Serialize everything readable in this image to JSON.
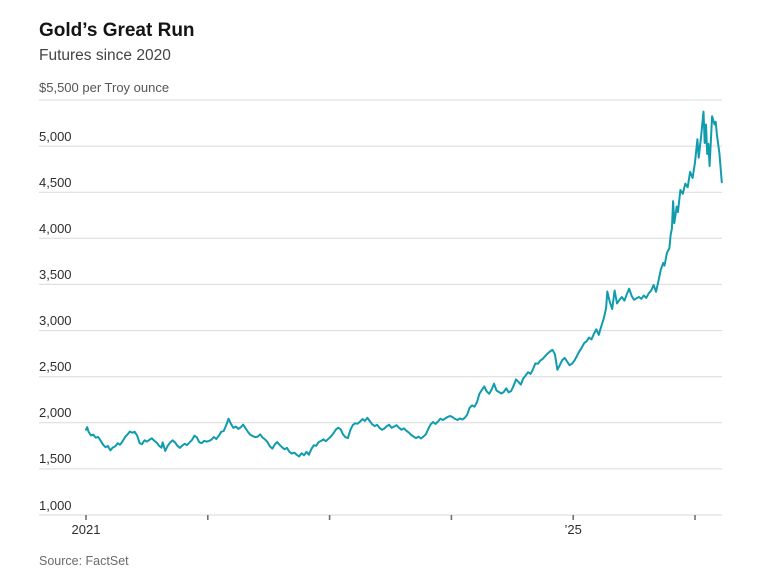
{
  "header": {
    "title": "Gold’s Great Run",
    "subtitle": "Futures since 2020"
  },
  "source": {
    "label": "Source: FactSet"
  },
  "chart_data": {
    "type": "line",
    "title": "Gold’s Great Run",
    "subtitle": "Futures since 2020",
    "series_name": "Gold futures price, dollars per troy ounce",
    "unit_label": "$5,500 per Troy ounce",
    "ylim": [
      1000,
      5500
    ],
    "y_ticks": [
      5500,
      5000,
      4500,
      4000,
      3500,
      3000,
      2500,
      2000,
      1500,
      1000
    ],
    "y_tick_labels": [
      {
        "value": 5000,
        "label": "5,000"
      },
      {
        "value": 4500,
        "label": "4,500"
      },
      {
        "value": 4000,
        "label": "4,000"
      },
      {
        "value": 3500,
        "label": "3,500"
      },
      {
        "value": 3000,
        "label": "3,000"
      },
      {
        "value": 2500,
        "label": "2,500"
      },
      {
        "value": 2000,
        "label": "2,000"
      },
      {
        "value": 1500,
        "label": "1,500"
      },
      {
        "value": 1000,
        "label": "1,000"
      }
    ],
    "x_ticks": [
      2021,
      2022,
      2023,
      2024,
      2025,
      2026
    ],
    "x_tick_labels": [
      {
        "year": 2021,
        "label": "2021"
      },
      {
        "year": 2025,
        "label": "’25"
      }
    ],
    "grid": true,
    "legend": "none",
    "line_color": "#119cae",
    "grid_color": "#dadada",
    "axis_tick_color": "#6f6f6f",
    "points": [
      [
        2021.0,
        1925
      ],
      [
        2021.01,
        1952
      ],
      [
        2021.02,
        1905
      ],
      [
        2021.04,
        1862
      ],
      [
        2021.06,
        1872
      ],
      [
        2021.08,
        1838
      ],
      [
        2021.1,
        1846
      ],
      [
        2021.12,
        1806
      ],
      [
        2021.14,
        1762
      ],
      [
        2021.16,
        1735
      ],
      [
        2021.18,
        1748
      ],
      [
        2021.2,
        1700
      ],
      [
        2021.22,
        1732
      ],
      [
        2021.24,
        1744
      ],
      [
        2021.26,
        1778
      ],
      [
        2021.28,
        1762
      ],
      [
        2021.3,
        1798
      ],
      [
        2021.32,
        1844
      ],
      [
        2021.34,
        1872
      ],
      [
        2021.36,
        1904
      ],
      [
        2021.38,
        1892
      ],
      [
        2021.4,
        1902
      ],
      [
        2021.42,
        1860
      ],
      [
        2021.44,
        1780
      ],
      [
        2021.46,
        1768
      ],
      [
        2021.48,
        1810
      ],
      [
        2021.5,
        1796
      ],
      [
        2021.52,
        1814
      ],
      [
        2021.54,
        1832
      ],
      [
        2021.56,
        1806
      ],
      [
        2021.58,
        1786
      ],
      [
        2021.6,
        1750
      ],
      [
        2021.62,
        1730
      ],
      [
        2021.63,
        1788
      ],
      [
        2021.65,
        1694
      ],
      [
        2021.67,
        1748
      ],
      [
        2021.69,
        1784
      ],
      [
        2021.71,
        1810
      ],
      [
        2021.73,
        1788
      ],
      [
        2021.75,
        1752
      ],
      [
        2021.77,
        1728
      ],
      [
        2021.79,
        1752
      ],
      [
        2021.81,
        1772
      ],
      [
        2021.83,
        1758
      ],
      [
        2021.85,
        1786
      ],
      [
        2021.87,
        1814
      ],
      [
        2021.89,
        1860
      ],
      [
        2021.91,
        1842
      ],
      [
        2021.93,
        1788
      ],
      [
        2021.95,
        1780
      ],
      [
        2021.97,
        1804
      ],
      [
        2021.99,
        1796
      ],
      [
        2022.01,
        1802
      ],
      [
        2022.03,
        1818
      ],
      [
        2022.05,
        1846
      ],
      [
        2022.07,
        1824
      ],
      [
        2022.09,
        1860
      ],
      [
        2022.11,
        1902
      ],
      [
        2022.13,
        1910
      ],
      [
        2022.15,
        1970
      ],
      [
        2022.17,
        2044
      ],
      [
        2022.19,
        1990
      ],
      [
        2022.21,
        1944
      ],
      [
        2022.23,
        1960
      ],
      [
        2022.25,
        1934
      ],
      [
        2022.27,
        1950
      ],
      [
        2022.29,
        1980
      ],
      [
        2022.31,
        1940
      ],
      [
        2022.33,
        1900
      ],
      [
        2022.35,
        1870
      ],
      [
        2022.37,
        1854
      ],
      [
        2022.39,
        1844
      ],
      [
        2022.41,
        1850
      ],
      [
        2022.43,
        1874
      ],
      [
        2022.45,
        1840
      ],
      [
        2022.47,
        1820
      ],
      [
        2022.49,
        1790
      ],
      [
        2022.51,
        1744
      ],
      [
        2022.53,
        1720
      ],
      [
        2022.55,
        1764
      ],
      [
        2022.57,
        1790
      ],
      [
        2022.59,
        1760
      ],
      [
        2022.61,
        1734
      ],
      [
        2022.63,
        1714
      ],
      [
        2022.65,
        1728
      ],
      [
        2022.67,
        1684
      ],
      [
        2022.69,
        1667
      ],
      [
        2022.71,
        1676
      ],
      [
        2022.73,
        1654
      ],
      [
        2022.75,
        1634
      ],
      [
        2022.77,
        1670
      ],
      [
        2022.79,
        1647
      ],
      [
        2022.81,
        1684
      ],
      [
        2022.83,
        1654
      ],
      [
        2022.85,
        1714
      ],
      [
        2022.87,
        1757
      ],
      [
        2022.89,
        1750
      ],
      [
        2022.91,
        1790
      ],
      [
        2022.93,
        1804
      ],
      [
        2022.95,
        1820
      ],
      [
        2022.97,
        1800
      ],
      [
        2022.99,
        1826
      ],
      [
        2023.01,
        1850
      ],
      [
        2023.03,
        1884
      ],
      [
        2023.05,
        1924
      ],
      [
        2023.07,
        1947
      ],
      [
        2023.09,
        1930
      ],
      [
        2023.11,
        1874
      ],
      [
        2023.13,
        1844
      ],
      [
        2023.15,
        1834
      ],
      [
        2023.17,
        1920
      ],
      [
        2023.19,
        1974
      ],
      [
        2023.21,
        1994
      ],
      [
        2023.23,
        1990
      ],
      [
        2023.25,
        2014
      ],
      [
        2023.27,
        2040
      ],
      [
        2023.29,
        2020
      ],
      [
        2023.31,
        2054
      ],
      [
        2023.33,
        2018
      ],
      [
        2023.35,
        1984
      ],
      [
        2023.37,
        1964
      ],
      [
        2023.39,
        1978
      ],
      [
        2023.41,
        1944
      ],
      [
        2023.43,
        1924
      ],
      [
        2023.45,
        1938
      ],
      [
        2023.47,
        1964
      ],
      [
        2023.49,
        1978
      ],
      [
        2023.51,
        1944
      ],
      [
        2023.53,
        1960
      ],
      [
        2023.55,
        1974
      ],
      [
        2023.57,
        1947
      ],
      [
        2023.59,
        1924
      ],
      [
        2023.61,
        1940
      ],
      [
        2023.63,
        1914
      ],
      [
        2023.65,
        1894
      ],
      [
        2023.67,
        1868
      ],
      [
        2023.69,
        1850
      ],
      [
        2023.71,
        1834
      ],
      [
        2023.73,
        1850
      ],
      [
        2023.75,
        1830
      ],
      [
        2023.77,
        1850
      ],
      [
        2023.79,
        1874
      ],
      [
        2023.81,
        1934
      ],
      [
        2023.83,
        1984
      ],
      [
        2023.85,
        2008
      ],
      [
        2023.87,
        1988
      ],
      [
        2023.89,
        2014
      ],
      [
        2023.91,
        2044
      ],
      [
        2023.93,
        2030
      ],
      [
        2023.95,
        2048
      ],
      [
        2023.97,
        2064
      ],
      [
        2023.99,
        2074
      ],
      [
        2024.01,
        2060
      ],
      [
        2024.03,
        2042
      ],
      [
        2024.05,
        2030
      ],
      [
        2024.07,
        2048
      ],
      [
        2024.09,
        2036
      ],
      [
        2024.11,
        2054
      ],
      [
        2024.13,
        2088
      ],
      [
        2024.15,
        2164
      ],
      [
        2024.17,
        2188
      ],
      [
        2024.19,
        2174
      ],
      [
        2024.21,
        2224
      ],
      [
        2024.23,
        2314
      ],
      [
        2024.25,
        2354
      ],
      [
        2024.27,
        2394
      ],
      [
        2024.29,
        2340
      ],
      [
        2024.31,
        2314
      ],
      [
        2024.33,
        2360
      ],
      [
        2024.35,
        2424
      ],
      [
        2024.37,
        2350
      ],
      [
        2024.39,
        2334
      ],
      [
        2024.41,
        2318
      ],
      [
        2024.43,
        2334
      ],
      [
        2024.45,
        2374
      ],
      [
        2024.47,
        2330
      ],
      [
        2024.49,
        2344
      ],
      [
        2024.51,
        2398
      ],
      [
        2024.53,
        2470
      ],
      [
        2024.55,
        2444
      ],
      [
        2024.57,
        2414
      ],
      [
        2024.59,
        2480
      ],
      [
        2024.61,
        2514
      ],
      [
        2024.63,
        2548
      ],
      [
        2024.65,
        2530
      ],
      [
        2024.67,
        2580
      ],
      [
        2024.69,
        2644
      ],
      [
        2024.71,
        2640
      ],
      [
        2024.73,
        2674
      ],
      [
        2024.75,
        2694
      ],
      [
        2024.77,
        2724
      ],
      [
        2024.79,
        2750
      ],
      [
        2024.81,
        2774
      ],
      [
        2024.83,
        2790
      ],
      [
        2024.85,
        2744
      ],
      [
        2024.87,
        2574
      ],
      [
        2024.89,
        2624
      ],
      [
        2024.91,
        2680
      ],
      [
        2024.93,
        2704
      ],
      [
        2024.95,
        2664
      ],
      [
        2024.97,
        2624
      ],
      [
        2024.99,
        2640
      ],
      [
        2025.01,
        2674
      ],
      [
        2025.03,
        2724
      ],
      [
        2025.05,
        2774
      ],
      [
        2025.07,
        2814
      ],
      [
        2025.09,
        2864
      ],
      [
        2025.11,
        2884
      ],
      [
        2025.13,
        2924
      ],
      [
        2025.15,
        2904
      ],
      [
        2025.17,
        2964
      ],
      [
        2025.19,
        3014
      ],
      [
        2025.21,
        2954
      ],
      [
        2025.23,
        3044
      ],
      [
        2025.25,
        3124
      ],
      [
        2025.27,
        3244
      ],
      [
        2025.28,
        3424
      ],
      [
        2025.3,
        3314
      ],
      [
        2025.32,
        3234
      ],
      [
        2025.34,
        3434
      ],
      [
        2025.36,
        3294
      ],
      [
        2025.38,
        3334
      ],
      [
        2025.4,
        3364
      ],
      [
        2025.42,
        3324
      ],
      [
        2025.44,
        3394
      ],
      [
        2025.46,
        3454
      ],
      [
        2025.48,
        3374
      ],
      [
        2025.5,
        3334
      ],
      [
        2025.52,
        3350
      ],
      [
        2025.54,
        3364
      ],
      [
        2025.56,
        3344
      ],
      [
        2025.58,
        3380
      ],
      [
        2025.6,
        3354
      ],
      [
        2025.62,
        3404
      ],
      [
        2025.64,
        3434
      ],
      [
        2025.66,
        3494
      ],
      [
        2025.68,
        3420
      ],
      [
        2025.7,
        3540
      ],
      [
        2025.72,
        3664
      ],
      [
        2025.74,
        3734
      ],
      [
        2025.75,
        3704
      ],
      [
        2025.77,
        3844
      ],
      [
        2025.79,
        3894
      ],
      [
        2025.8,
        4034
      ],
      [
        2025.81,
        4104
      ],
      [
        2025.82,
        4404
      ],
      [
        2025.83,
        4164
      ],
      [
        2025.85,
        4344
      ],
      [
        2025.86,
        4284
      ],
      [
        2025.88,
        4524
      ],
      [
        2025.9,
        4484
      ],
      [
        2025.92,
        4594
      ],
      [
        2025.94,
        4554
      ],
      [
        2025.96,
        4720
      ],
      [
        2025.98,
        4654
      ],
      [
        2026.0,
        4824
      ],
      [
        2026.02,
        5074
      ],
      [
        2026.03,
        4874
      ],
      [
        2026.05,
        5104
      ],
      [
        2026.07,
        5374
      ],
      [
        2026.08,
        5034
      ],
      [
        2026.09,
        5234
      ],
      [
        2026.1,
        4914
      ],
      [
        2026.11,
        5024
      ],
      [
        2026.12,
        4784
      ],
      [
        2026.14,
        5324
      ],
      [
        2026.16,
        5234
      ],
      [
        2026.17,
        5264
      ],
      [
        2026.18,
        5124
      ],
      [
        2026.2,
        4924
      ],
      [
        2026.22,
        4608
      ]
    ]
  }
}
